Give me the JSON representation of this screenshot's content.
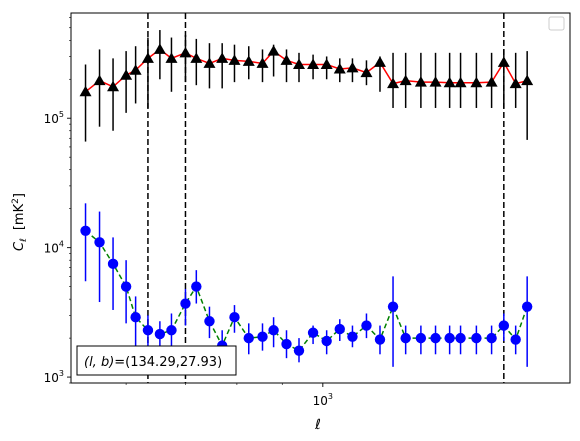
{
  "chart_data": {
    "type": "scatter",
    "title": "",
    "xlabel": "ℓ",
    "ylabel_main": "C",
    "ylabel_sub": "ℓ",
    "ylabel_units": "[mK",
    "ylabel_units_sup": "2",
    "ylabel_units_close": "]",
    "xscale": "log",
    "yscale": "log",
    "xlim": [
      520,
      1900
    ],
    "ylim": [
      900,
      650000
    ],
    "x_tick_labels": [
      {
        "base": "10",
        "exp": "3",
        "value": 1000
      }
    ],
    "y_tick_labels": [
      {
        "base": "10",
        "exp": "3",
        "value": 1000
      },
      {
        "base": "10",
        "exp": "4",
        "value": 10000
      },
      {
        "base": "10",
        "exp": "5",
        "value": 100000
      }
    ],
    "vlines": [
      635,
      700,
      1600
    ],
    "annotation": "(l, b)=(134.29,27.93)",
    "annotation_parts": {
      "vars": "(l, b)",
      "values": "=(134.29,27.93)"
    },
    "legend": {
      "location": "top-right",
      "entries": []
    },
    "series": [
      {
        "marker": "triangle",
        "color": "#000000",
        "line_color": "#ff0000",
        "line_style": "solid",
        "x": [
          540,
          560,
          580,
          600,
          615,
          635,
          655,
          675,
          700,
          720,
          745,
          770,
          795,
          825,
          855,
          880,
          910,
          940,
          975,
          1010,
          1045,
          1080,
          1120,
          1160,
          1200,
          1240,
          1290,
          1340,
          1390,
          1430,
          1490,
          1550,
          1600,
          1650,
          1700
        ],
        "y": [
          160000,
          195000,
          175000,
          215000,
          235000,
          290000,
          340000,
          290000,
          320000,
          290000,
          265000,
          290000,
          280000,
          275000,
          265000,
          330000,
          280000,
          260000,
          260000,
          260000,
          240000,
          245000,
          225000,
          270000,
          185000,
          195000,
          190000,
          190000,
          188000,
          188000,
          188000,
          190000,
          270000,
          185000,
          195000
        ],
        "y_err_low": [
          66000,
          86000,
          80000,
          110000,
          130000,
          120000,
          200000,
          160000,
          190000,
          180000,
          170000,
          170000,
          190000,
          200000,
          190000,
          210000,
          190000,
          190000,
          200000,
          200000,
          190000,
          190000,
          180000,
          160000,
          120000,
          120000,
          120000,
          120000,
          120000,
          120000,
          120000,
          120000,
          120000,
          120000,
          68000
        ],
        "y_err_high": [
          260000,
          340000,
          290000,
          330000,
          360000,
          420000,
          480000,
          420000,
          440000,
          410000,
          380000,
          380000,
          370000,
          360000,
          340000,
          370000,
          340000,
          320000,
          310000,
          300000,
          290000,
          290000,
          280000,
          300000,
          320000,
          320000,
          320000,
          320000,
          320000,
          320000,
          320000,
          320000,
          340000,
          320000,
          330000
        ]
      },
      {
        "marker": "circle",
        "color": "#0000ff",
        "line_color": "#008000",
        "line_style": "dashed",
        "x": [
          540,
          560,
          580,
          600,
          615,
          635,
          655,
          675,
          700,
          720,
          745,
          770,
          795,
          825,
          855,
          880,
          910,
          940,
          975,
          1010,
          1045,
          1080,
          1120,
          1160,
          1200,
          1240,
          1290,
          1340,
          1390,
          1430,
          1490,
          1550,
          1600,
          1650,
          1700
        ],
        "y": [
          13500,
          11000,
          7500,
          5000,
          2900,
          2300,
          2150,
          2300,
          3700,
          5000,
          2700,
          1750,
          2900,
          2000,
          2050,
          2300,
          1800,
          1600,
          2200,
          1900,
          2350,
          2050,
          2500,
          1950,
          3500,
          2000,
          2000,
          2000,
          2000,
          2000,
          2000,
          2000,
          2500,
          1950,
          3500
        ],
        "y_err_low": [
          5500,
          3800,
          3300,
          2600,
          1700,
          1400,
          1300,
          1400,
          2500,
          3700,
          2000,
          1300,
          2200,
          1500,
          1600,
          1700,
          1400,
          1300,
          1800,
          1500,
          1900,
          1700,
          2000,
          1500,
          1200,
          1500,
          1500,
          1500,
          1500,
          1500,
          1500,
          1500,
          1900,
          1500,
          1200
        ],
        "y_err_high": [
          22000,
          19000,
          12000,
          8000,
          4200,
          3000,
          2700,
          3100,
          4800,
          6700,
          3500,
          2300,
          3600,
          2600,
          2600,
          2900,
          2300,
          2000,
          2500,
          2300,
          2800,
          2500,
          3100,
          2500,
          6000,
          2500,
          2500,
          2500,
          2500,
          2500,
          2500,
          2500,
          3100,
          2500,
          6000
        ]
      }
    ]
  }
}
